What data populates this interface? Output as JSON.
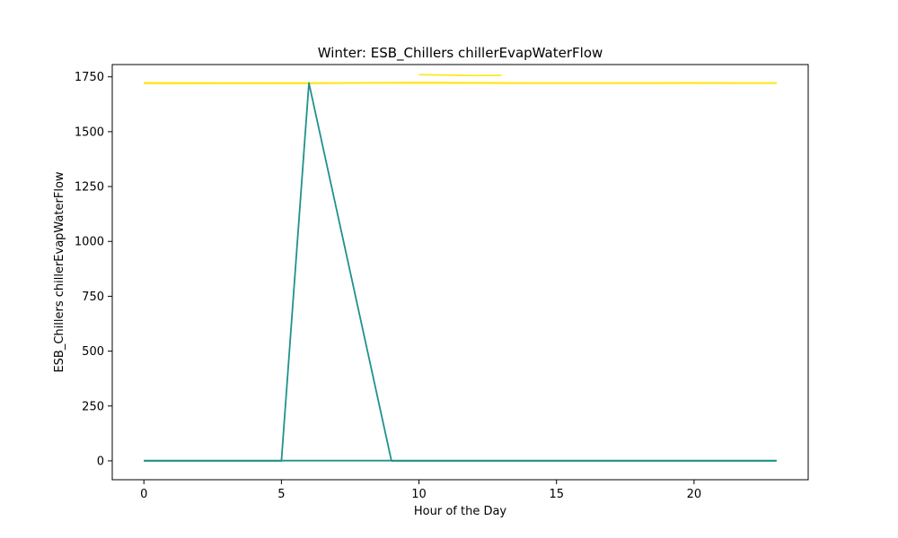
{
  "chart_data": {
    "type": "line",
    "title": "Winter: ESB_Chillers chillerEvapWaterFlow",
    "xlabel": "Hour of the Day",
    "ylabel": "ESB_Chillers chillerEvapWaterFlow",
    "xlim": [
      -1.15,
      24.15
    ],
    "ylim": [
      -86,
      1806
    ],
    "xticks": [
      0,
      5,
      10,
      15,
      20
    ],
    "yticks": [
      0,
      250,
      500,
      750,
      1000,
      1250,
      1500,
      1750
    ],
    "grid": false,
    "legend": "none",
    "series": [
      {
        "color": "#fde725",
        "x": [
          0,
          5,
          10,
          15,
          20,
          23
        ],
        "y": [
          1720,
          1720,
          1723,
          1721,
          1721,
          1721
        ]
      },
      {
        "color": "#fde725",
        "x": [
          0,
          5,
          10,
          15,
          20,
          23
        ],
        "y": [
          1723,
          1722,
          1724,
          1722,
          1723,
          1722
        ]
      },
      {
        "color": "#fde725",
        "x": [
          0,
          6,
          9,
          13,
          23
        ],
        "y": [
          1722,
          1721,
          1722,
          1721,
          1722
        ]
      },
      {
        "color": "#fde725",
        "x": [
          10,
          11,
          12,
          13
        ],
        "y": [
          1760,
          1758,
          1756,
          1757
        ]
      },
      {
        "color": "#21918c",
        "x": [
          0,
          5,
          6,
          9,
          15,
          20,
          23
        ],
        "y": [
          0,
          0,
          1722,
          0,
          0,
          0,
          0
        ]
      },
      {
        "color": "#21918c",
        "x": [
          0,
          5,
          10,
          15,
          20,
          23
        ],
        "y": [
          1,
          1,
          1,
          1,
          1,
          1
        ]
      }
    ]
  }
}
